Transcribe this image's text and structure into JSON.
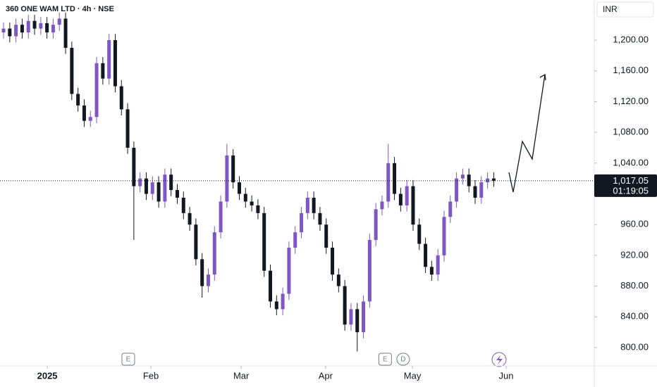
{
  "chart_data": {
    "type": "candlestick",
    "title": "360 ONE WAM LTD · 4h · NSE",
    "currency": "INR",
    "open": [
      1210,
      1215,
      1205,
      1220,
      1210,
      1225,
      1215,
      1222,
      1210,
      1220,
      1228,
      1190,
      1130,
      1115,
      1095,
      1100,
      1170,
      1150,
      1200,
      1140,
      1110,
      1060,
      1010,
      1020,
      1000,
      1015,
      990,
      1025,
      1005,
      995,
      975,
      960,
      915,
      880,
      895,
      950,
      990,
      1050,
      1015,
      1000,
      990,
      985,
      975,
      900,
      860,
      850,
      870,
      930,
      950,
      975,
      995,
      975,
      960,
      930,
      895,
      880,
      830,
      850,
      820,
      860,
      940,
      980,
      990,
      1040,
      1000,
      985,
      1010,
      960,
      935,
      905,
      895,
      920,
      970,
      990,
      1020,
      1025,
      1010,
      995,
      1015,
      1020
    ],
    "high": [
      1223,
      1223,
      1228,
      1228,
      1233,
      1233,
      1230,
      1230,
      1228,
      1236,
      1236,
      1198,
      1138,
      1123,
      1108,
      1178,
      1178,
      1208,
      1208,
      1148,
      1118,
      1068,
      1028,
      1028,
      1023,
      1023,
      1033,
      1033,
      1013,
      1003,
      983,
      968,
      923,
      903,
      958,
      998,
      1065,
      1058,
      1023,
      1008,
      998,
      993,
      983,
      908,
      868,
      878,
      938,
      958,
      983,
      1003,
      1003,
      983,
      968,
      938,
      903,
      888,
      858,
      858,
      868,
      948,
      988,
      998,
      1065,
      1048,
      1008,
      1018,
      1018,
      968,
      943,
      913,
      928,
      978,
      998,
      1028,
      1033,
      1033,
      1018,
      1023,
      1028,
      1028
    ],
    "low": [
      1202,
      1197,
      1197,
      1202,
      1202,
      1207,
      1207,
      1202,
      1202,
      1212,
      1182,
      1122,
      1107,
      1087,
      1087,
      1092,
      1142,
      1142,
      1132,
      1102,
      1052,
      940,
      1002,
      992,
      992,
      982,
      982,
      997,
      987,
      967,
      952,
      907,
      865,
      872,
      887,
      942,
      982,
      1007,
      992,
      982,
      977,
      967,
      892,
      852,
      842,
      842,
      862,
      922,
      942,
      967,
      967,
      952,
      922,
      887,
      872,
      822,
      822,
      795,
      812,
      852,
      932,
      972,
      982,
      992,
      977,
      977,
      952,
      927,
      897,
      887,
      887,
      912,
      962,
      982,
      1012,
      1002,
      987,
      987,
      1007,
      1009.05
    ],
    "close": [
      1215,
      1205,
      1220,
      1210,
      1225,
      1215,
      1222,
      1210,
      1220,
      1228,
      1190,
      1130,
      1115,
      1095,
      1100,
      1170,
      1150,
      1200,
      1140,
      1110,
      1060,
      1010,
      1020,
      1000,
      1015,
      990,
      1025,
      1005,
      995,
      975,
      960,
      915,
      880,
      895,
      950,
      990,
      1050,
      1015,
      1000,
      990,
      985,
      975,
      900,
      860,
      850,
      870,
      930,
      950,
      975,
      995,
      975,
      960,
      930,
      895,
      880,
      830,
      850,
      820,
      860,
      940,
      980,
      990,
      1040,
      1000,
      985,
      1010,
      960,
      935,
      905,
      895,
      920,
      970,
      990,
      1020,
      1025,
      1010,
      995,
      1015,
      1020,
      1017.05
    ],
    "up_color": "#7e57c2",
    "down_color": "#131722",
    "ylim": [
      776.2,
      1252.2
    ],
    "yticks": [
      {
        "value": 800,
        "label": "800.00"
      },
      {
        "value": 840,
        "label": "840.00"
      },
      {
        "value": 880,
        "label": "880.00"
      },
      {
        "value": 920,
        "label": "920.00"
      },
      {
        "value": 960,
        "label": "960.00"
      },
      {
        "value": 1040,
        "label": "1,040.00"
      },
      {
        "value": 1080,
        "label": "1,080.00"
      },
      {
        "value": 1120,
        "label": "1,120.00"
      },
      {
        "value": 1160,
        "label": "1,160.00"
      },
      {
        "value": 1200,
        "label": "1,200.00"
      }
    ],
    "xlim": [
      -0.57,
      95.2
    ],
    "xticks": [
      {
        "value": 7.05,
        "label": "2025"
      },
      {
        "value": 23.75,
        "label": "Feb"
      },
      {
        "value": 38.3,
        "label": "Mar"
      },
      {
        "value": 51.9,
        "label": "Apr"
      },
      {
        "value": 65.9,
        "label": "May"
      },
      {
        "value": 81.0,
        "label": "Jun"
      }
    ],
    "events": [
      {
        "value": 20.1,
        "label": "E"
      },
      {
        "value": 61.5,
        "label": "E"
      },
      {
        "value": 64.4,
        "label": "D"
      }
    ],
    "last_price": {
      "value": 1017.05,
      "label": "1,017.05"
    },
    "countdown": "01:19:05"
  }
}
